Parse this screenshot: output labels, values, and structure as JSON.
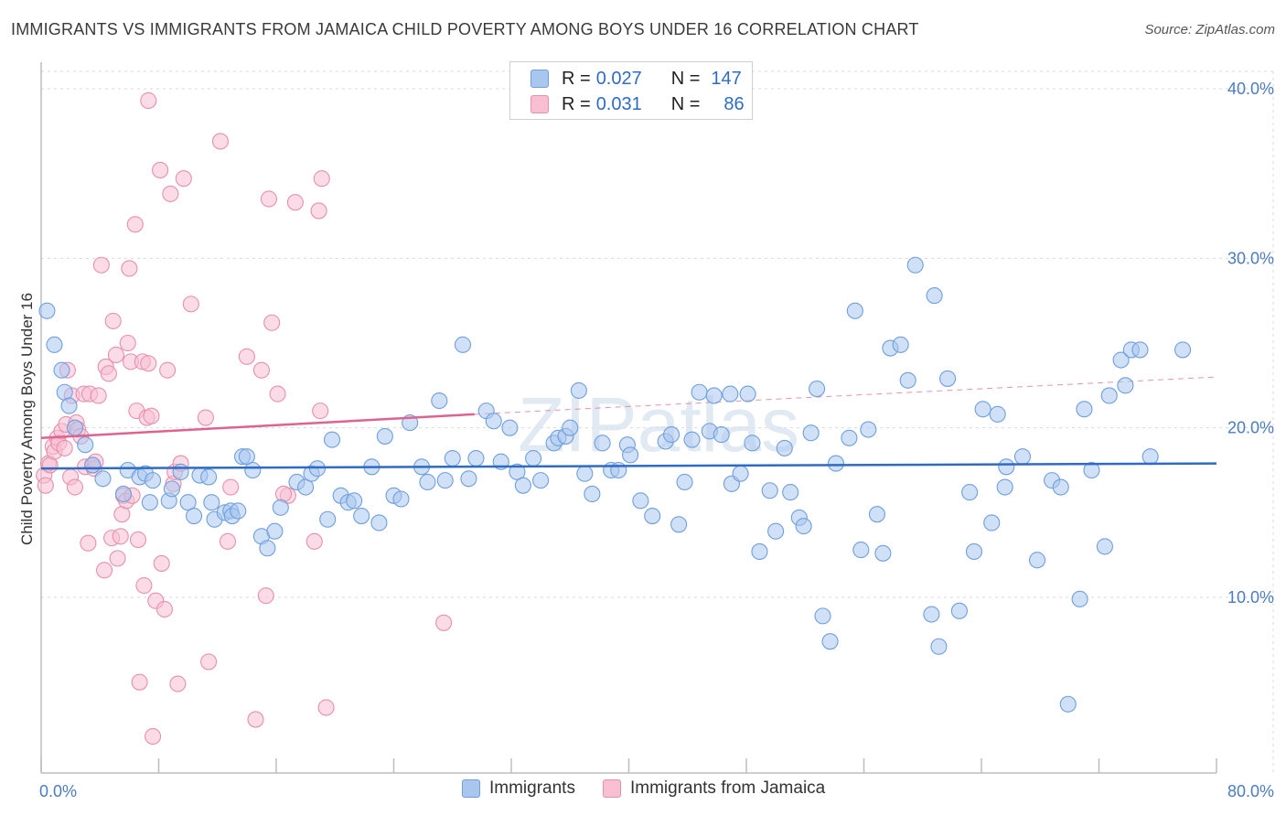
{
  "title": "IMMIGRANTS VS IMMIGRANTS FROM JAMAICA CHILD POVERTY AMONG BOYS UNDER 16 CORRELATION CHART",
  "source": "Source: ZipAtlas.com",
  "watermark": "ZIPatlas",
  "legend": {
    "rows": [
      {
        "r_label": "R =",
        "r_value": "0.027",
        "n_label": "N =",
        "n_value": "147",
        "color": "#a9c6ee",
        "border": "#6f9fde"
      },
      {
        "r_label": "R =",
        "r_value": "0.031",
        "n_label": "N =",
        "n_value": "86",
        "color": "#f7bfd1",
        "border": "#e98fae"
      }
    ]
  },
  "bottom_legend": [
    {
      "label": "Immigrants",
      "color": "#a9c6ee",
      "border": "#6f9fde"
    },
    {
      "label": "Immigrants from Jamaica",
      "color": "#f7bfd1",
      "border": "#e98fae"
    }
  ],
  "chart_data": {
    "type": "scatter",
    "ylabel": "Child Poverty Among Boys Under 16",
    "xlabel": "",
    "xlim": [
      0,
      80
    ],
    "ylim": [
      0,
      40
    ],
    "x_tick_labels": [
      "0.0%",
      "80.0%"
    ],
    "y_ticks": [
      10,
      20,
      30,
      40
    ],
    "y_tick_labels": [
      "10.0%",
      "20.0%",
      "30.0%",
      "40.0%"
    ],
    "grid": true,
    "series": [
      {
        "name": "Immigrants",
        "color": "#6f9fde",
        "fill": "#a9c6ee",
        "trend": {
          "x": [
            0,
            80
          ],
          "y": [
            17.6,
            17.9
          ],
          "color": "#2f6bc6"
        },
        "points": [
          [
            0.4,
            26.9
          ],
          [
            0.9,
            24.9
          ],
          [
            1.4,
            23.4
          ],
          [
            1.6,
            22.1
          ],
          [
            1.9,
            21.3
          ],
          [
            2.3,
            20.0
          ],
          [
            3.0,
            19.0
          ],
          [
            3.5,
            17.8
          ],
          [
            4.2,
            17.0
          ],
          [
            5.6,
            16.1
          ],
          [
            5.9,
            17.5
          ],
          [
            6.7,
            17.1
          ],
          [
            7.1,
            17.3
          ],
          [
            7.6,
            16.9
          ],
          [
            7.4,
            15.6
          ],
          [
            8.7,
            15.7
          ],
          [
            8.9,
            16.4
          ],
          [
            9.5,
            17.4
          ],
          [
            10.0,
            15.6
          ],
          [
            10.4,
            14.8
          ],
          [
            10.8,
            17.2
          ],
          [
            11.4,
            17.1
          ],
          [
            11.6,
            15.6
          ],
          [
            11.8,
            14.6
          ],
          [
            12.5,
            15.0
          ],
          [
            12.9,
            15.1
          ],
          [
            13.0,
            14.8
          ],
          [
            13.4,
            15.1
          ],
          [
            13.7,
            18.3
          ],
          [
            14.0,
            18.3
          ],
          [
            14.4,
            17.5
          ],
          [
            15.0,
            13.6
          ],
          [
            15.4,
            12.9
          ],
          [
            15.9,
            13.9
          ],
          [
            16.3,
            15.3
          ],
          [
            17.4,
            16.8
          ],
          [
            18.0,
            16.5
          ],
          [
            18.4,
            17.3
          ],
          [
            18.8,
            17.6
          ],
          [
            19.5,
            14.6
          ],
          [
            19.8,
            19.3
          ],
          [
            20.4,
            16.0
          ],
          [
            20.9,
            15.6
          ],
          [
            21.3,
            15.7
          ],
          [
            21.8,
            14.8
          ],
          [
            22.5,
            17.7
          ],
          [
            23.0,
            14.4
          ],
          [
            23.4,
            19.5
          ],
          [
            24.0,
            16.0
          ],
          [
            24.5,
            15.8
          ],
          [
            25.1,
            20.3
          ],
          [
            25.9,
            17.7
          ],
          [
            26.3,
            16.8
          ],
          [
            27.1,
            21.6
          ],
          [
            27.5,
            16.9
          ],
          [
            28.0,
            18.2
          ],
          [
            28.7,
            24.9
          ],
          [
            29.1,
            17.0
          ],
          [
            29.6,
            18.2
          ],
          [
            30.3,
            21.0
          ],
          [
            30.8,
            20.4
          ],
          [
            31.3,
            18.0
          ],
          [
            31.9,
            20.0
          ],
          [
            32.4,
            17.4
          ],
          [
            32.8,
            16.6
          ],
          [
            33.5,
            18.2
          ],
          [
            34.0,
            16.9
          ],
          [
            34.9,
            19.1
          ],
          [
            35.2,
            19.4
          ],
          [
            35.7,
            19.5
          ],
          [
            36.0,
            20.0
          ],
          [
            36.6,
            22.2
          ],
          [
            37.0,
            17.3
          ],
          [
            37.5,
            16.1
          ],
          [
            38.2,
            19.1
          ],
          [
            38.8,
            17.5
          ],
          [
            39.3,
            17.5
          ],
          [
            39.9,
            19.0
          ],
          [
            40.1,
            18.4
          ],
          [
            40.8,
            15.7
          ],
          [
            41.6,
            14.8
          ],
          [
            42.5,
            19.2
          ],
          [
            42.9,
            19.6
          ],
          [
            43.4,
            14.3
          ],
          [
            43.8,
            16.8
          ],
          [
            44.3,
            19.3
          ],
          [
            44.8,
            22.1
          ],
          [
            45.5,
            19.8
          ],
          [
            45.8,
            21.9
          ],
          [
            46.3,
            19.6
          ],
          [
            46.9,
            22.0
          ],
          [
            47.0,
            16.7
          ],
          [
            47.6,
            17.3
          ],
          [
            48.1,
            22.0
          ],
          [
            48.4,
            19.1
          ],
          [
            48.9,
            12.7
          ],
          [
            49.6,
            16.3
          ],
          [
            50.0,
            13.9
          ],
          [
            50.6,
            18.8
          ],
          [
            51.0,
            16.2
          ],
          [
            51.6,
            14.7
          ],
          [
            51.9,
            14.2
          ],
          [
            52.4,
            19.7
          ],
          [
            52.8,
            22.3
          ],
          [
            53.2,
            8.9
          ],
          [
            53.7,
            7.4
          ],
          [
            54.1,
            17.9
          ],
          [
            55.0,
            19.4
          ],
          [
            55.4,
            26.9
          ],
          [
            55.8,
            12.8
          ],
          [
            56.3,
            19.9
          ],
          [
            56.9,
            14.9
          ],
          [
            57.3,
            12.6
          ],
          [
            57.8,
            24.7
          ],
          [
            58.5,
            24.9
          ],
          [
            59.0,
            22.8
          ],
          [
            59.5,
            29.6
          ],
          [
            60.6,
            9.0
          ],
          [
            60.8,
            27.8
          ],
          [
            61.1,
            7.1
          ],
          [
            61.7,
            22.9
          ],
          [
            62.5,
            9.2
          ],
          [
            63.2,
            16.2
          ],
          [
            63.5,
            12.7
          ],
          [
            64.1,
            21.1
          ],
          [
            64.7,
            14.4
          ],
          [
            65.1,
            20.8
          ],
          [
            65.6,
            16.5
          ],
          [
            65.7,
            17.7
          ],
          [
            66.8,
            18.3
          ],
          [
            67.8,
            12.2
          ],
          [
            68.8,
            16.9
          ],
          [
            69.4,
            16.5
          ],
          [
            69.9,
            3.7
          ],
          [
            70.7,
            9.9
          ],
          [
            71.0,
            21.1
          ],
          [
            71.5,
            17.5
          ],
          [
            72.4,
            13.0
          ],
          [
            72.7,
            21.9
          ],
          [
            73.5,
            24.0
          ],
          [
            73.8,
            22.5
          ],
          [
            74.2,
            24.6
          ],
          [
            74.8,
            24.6
          ],
          [
            77.7,
            24.6
          ],
          [
            75.5,
            18.3
          ]
        ]
      },
      {
        "name": "Immigrants from Jamaica",
        "color": "#e98fae",
        "fill": "#f7bfd1",
        "trend": {
          "x": [
            0,
            29.5
          ],
          "y": [
            19.4,
            20.8
          ],
          "color": "#e0628f",
          "dashed_to": [
            80,
            23.0
          ]
        },
        "points": [
          [
            0.2,
            17.2
          ],
          [
            0.3,
            16.6
          ],
          [
            0.5,
            17.9
          ],
          [
            0.6,
            17.8
          ],
          [
            0.8,
            18.9
          ],
          [
            0.9,
            18.6
          ],
          [
            1.1,
            19.4
          ],
          [
            1.2,
            19.1
          ],
          [
            1.4,
            19.8
          ],
          [
            1.6,
            18.8
          ],
          [
            1.7,
            20.2
          ],
          [
            1.8,
            23.4
          ],
          [
            2.0,
            17.1
          ],
          [
            2.1,
            21.9
          ],
          [
            2.3,
            16.5
          ],
          [
            2.4,
            20.3
          ],
          [
            2.5,
            19.9
          ],
          [
            2.7,
            19.5
          ],
          [
            2.9,
            22.0
          ],
          [
            3.0,
            17.7
          ],
          [
            3.2,
            13.2
          ],
          [
            3.3,
            22.0
          ],
          [
            3.5,
            17.8
          ],
          [
            3.6,
            17.6
          ],
          [
            3.7,
            18.0
          ],
          [
            3.9,
            21.9
          ],
          [
            4.1,
            29.6
          ],
          [
            4.3,
            11.6
          ],
          [
            4.4,
            23.6
          ],
          [
            4.6,
            23.2
          ],
          [
            4.8,
            13.5
          ],
          [
            4.9,
            26.3
          ],
          [
            5.1,
            24.3
          ],
          [
            5.2,
            12.3
          ],
          [
            5.4,
            13.6
          ],
          [
            5.5,
            14.9
          ],
          [
            5.6,
            16.0
          ],
          [
            5.8,
            15.7
          ],
          [
            5.9,
            25.0
          ],
          [
            6.0,
            29.4
          ],
          [
            6.1,
            23.9
          ],
          [
            6.2,
            16.0
          ],
          [
            6.4,
            32.0
          ],
          [
            6.5,
            21.0
          ],
          [
            6.6,
            13.4
          ],
          [
            6.7,
            5.0
          ],
          [
            6.9,
            23.9
          ],
          [
            7.0,
            10.7
          ],
          [
            7.2,
            20.6
          ],
          [
            7.3,
            23.8
          ],
          [
            7.5,
            20.7
          ],
          [
            7.6,
            1.8
          ],
          [
            7.3,
            39.3
          ],
          [
            7.8,
            9.8
          ],
          [
            8.1,
            35.2
          ],
          [
            8.2,
            12.0
          ],
          [
            8.4,
            9.3
          ],
          [
            8.6,
            23.4
          ],
          [
            8.8,
            33.8
          ],
          [
            9.0,
            16.7
          ],
          [
            9.1,
            17.4
          ],
          [
            9.3,
            4.9
          ],
          [
            9.5,
            17.9
          ],
          [
            9.7,
            34.7
          ],
          [
            10.2,
            27.3
          ],
          [
            11.2,
            20.6
          ],
          [
            11.4,
            6.2
          ],
          [
            12.2,
            36.9
          ],
          [
            12.7,
            13.3
          ],
          [
            12.9,
            16.5
          ],
          [
            14.0,
            24.2
          ],
          [
            14.6,
            2.8
          ],
          [
            15.0,
            23.4
          ],
          [
            15.3,
            10.1
          ],
          [
            15.5,
            33.5
          ],
          [
            15.7,
            26.2
          ],
          [
            16.1,
            22.0
          ],
          [
            16.8,
            16.0
          ],
          [
            17.3,
            33.3
          ],
          [
            18.9,
            32.8
          ],
          [
            19.1,
            34.7
          ],
          [
            19.0,
            21.0
          ],
          [
            19.4,
            3.5
          ],
          [
            27.4,
            8.5
          ],
          [
            18.6,
            13.3
          ],
          [
            16.5,
            16.1
          ]
        ]
      }
    ]
  }
}
